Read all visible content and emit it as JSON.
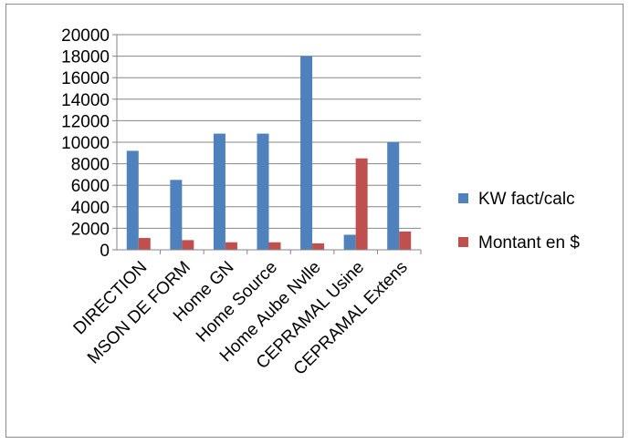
{
  "chart_data": {
    "type": "bar",
    "categories": [
      "DIRECTION",
      "MSON DE FORM",
      "Home GN",
      "Home Source",
      "Home Aube Nvlle",
      "CEPRAMAL Usine",
      "CEPRAMAL Extens"
    ],
    "series": [
      {
        "name": "KW fact/calc",
        "color": "#4f81bd",
        "values": [
          9200,
          6500,
          10800,
          10800,
          18000,
          1400,
          10000
        ]
      },
      {
        "name": "Montant en $",
        "color": "#c0504d",
        "values": [
          1100,
          900,
          700,
          700,
          600,
          8500,
          1700
        ]
      }
    ],
    "yticks": [
      0,
      2000,
      4000,
      6000,
      8000,
      10000,
      12000,
      14000,
      16000,
      18000,
      20000
    ],
    "ylim": [
      0,
      20000
    ],
    "grid": true,
    "legend": "right"
  }
}
